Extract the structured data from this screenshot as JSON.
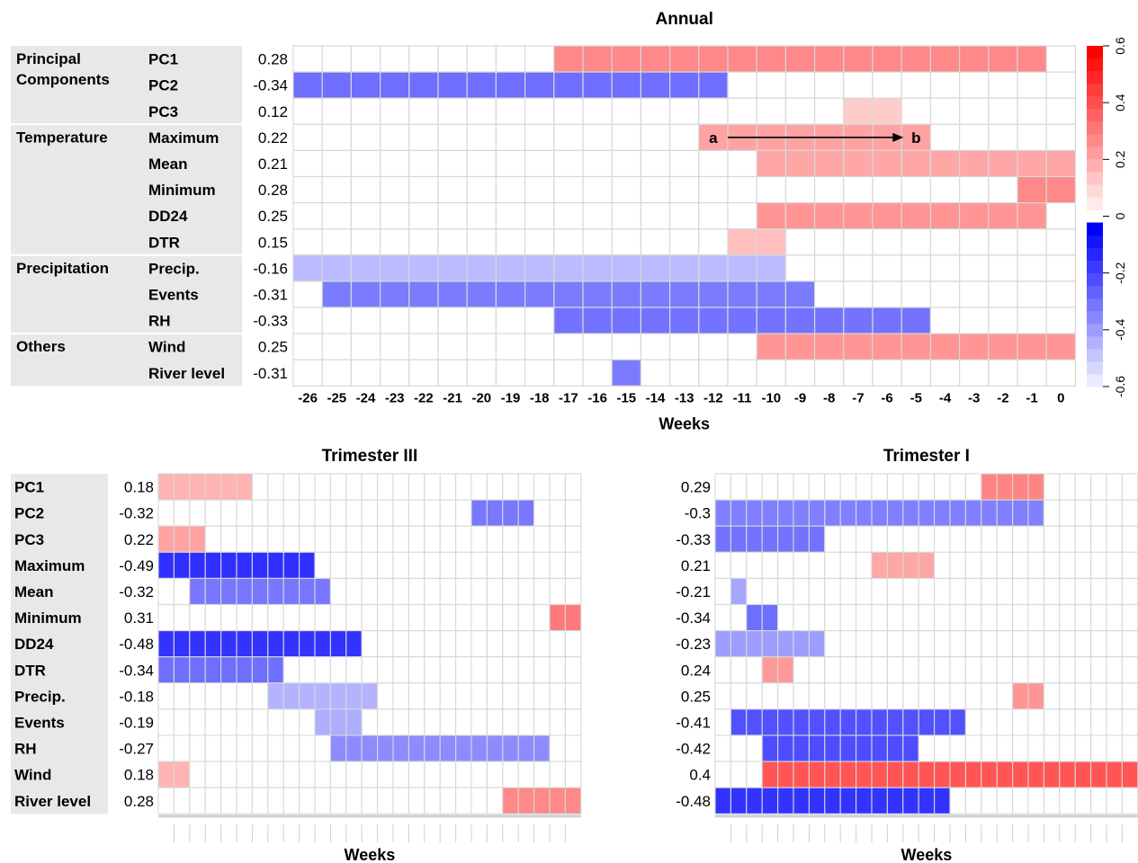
{
  "chart_data": [
    {
      "type": "heatmap",
      "title": "Annual",
      "xlabel": "Weeks",
      "x": [
        "-26",
        "-25",
        "-24",
        "-23",
        "-22",
        "-21",
        "-20",
        "-19",
        "-18",
        "-17",
        "-16",
        "-15",
        "-14",
        "-13",
        "-12",
        "-11",
        "-10",
        "-9",
        "-8",
        "-7",
        "-6",
        "-5",
        "-4",
        "-3",
        "-2",
        "-1",
        "0"
      ],
      "groups": [
        {
          "name": "Principal Components",
          "rows": [
            0,
            1,
            2
          ]
        },
        {
          "name": "Temperature",
          "rows": [
            3,
            4,
            5,
            6,
            7
          ]
        },
        {
          "name": "Precipitation",
          "rows": [
            8,
            9,
            10
          ]
        },
        {
          "name": "Others",
          "rows": [
            11,
            12
          ]
        }
      ],
      "rows": [
        {
          "label": "PC1",
          "value": "0.28",
          "start": -17,
          "end": -1
        },
        {
          "label": "PC2",
          "value": "-0.34",
          "start": -26,
          "end": -12
        },
        {
          "label": "PC3",
          "value": "0.12",
          "start": -7,
          "end": -6
        },
        {
          "label": "Maximum",
          "value": "0.22",
          "start": -12,
          "end": -5
        },
        {
          "label": "Mean",
          "value": "0.21",
          "start": -10,
          "end": 0
        },
        {
          "label": "Minimum",
          "value": "0.28",
          "start": -1,
          "end": 0
        },
        {
          "label": "DD24",
          "value": "0.25",
          "start": -10,
          "end": -1
        },
        {
          "label": "DTR",
          "value": "0.15",
          "start": -11,
          "end": -10
        },
        {
          "label": "Precip.",
          "value": "-0.16",
          "start": -26,
          "end": -10
        },
        {
          "label": "Events",
          "value": "-0.31",
          "start": -25,
          "end": -9
        },
        {
          "label": "RH",
          "value": "-0.33",
          "start": -17,
          "end": -5
        },
        {
          "label": "Wind",
          "value": "0.25",
          "start": -10,
          "end": 0
        },
        {
          "label": "River level",
          "value": "-0.31",
          "start": -15,
          "end": -15
        }
      ],
      "annotation": {
        "row": 3,
        "from_week": -12,
        "to_week": -5,
        "start_label": "a",
        "end_label": "b"
      },
      "colorbar": {
        "ticks": [
          "-0.6",
          "-0.4",
          "-0.2",
          "0",
          "0.2",
          "0.4",
          "0.6"
        ],
        "range": [
          -0.6,
          0.6
        ],
        "negative_color": "#0000ff",
        "positive_color": "#ff0000"
      }
    },
    {
      "type": "heatmap",
      "title": "Trimester III",
      "xlabel": "Weeks",
      "n_columns": 27,
      "rows": [
        {
          "label": "PC1",
          "value": "0.18",
          "start": 0,
          "end": 5
        },
        {
          "label": "PC2",
          "value": "-0.32",
          "start": 20,
          "end": 23
        },
        {
          "label": "PC3",
          "value": "0.22",
          "start": 0,
          "end": 2
        },
        {
          "label": "Maximum",
          "value": "-0.49",
          "start": 0,
          "end": 9
        },
        {
          "label": "Mean",
          "value": "-0.32",
          "start": 2,
          "end": 10
        },
        {
          "label": "Minimum",
          "value": "0.31",
          "start": 25,
          "end": 26
        },
        {
          "label": "DD24",
          "value": "-0.48",
          "start": 0,
          "end": 12
        },
        {
          "label": "DTR",
          "value": "-0.34",
          "start": 0,
          "end": 7
        },
        {
          "label": "Precip.",
          "value": "-0.18",
          "start": 7,
          "end": 13
        },
        {
          "label": "Events",
          "value": "-0.19",
          "start": 10,
          "end": 12
        },
        {
          "label": "RH",
          "value": "-0.27",
          "start": 11,
          "end": 24
        },
        {
          "label": "Wind",
          "value": "0.18",
          "start": 0,
          "end": 1
        },
        {
          "label": "River level",
          "value": "0.28",
          "start": 22,
          "end": 26
        }
      ]
    },
    {
      "type": "heatmap",
      "title": "Trimester I",
      "xlabel": "Weeks",
      "n_columns": 27,
      "rows": [
        {
          "label": "PC1",
          "value": "0.29",
          "start": 17,
          "end": 20
        },
        {
          "label": "PC2",
          "value": "-0.3",
          "start": 0,
          "end": 20
        },
        {
          "label": "PC3",
          "value": "-0.33",
          "start": 0,
          "end": 6
        },
        {
          "label": "Maximum",
          "value": "0.21",
          "start": 10,
          "end": 13
        },
        {
          "label": "Mean",
          "value": "-0.21",
          "start": 1,
          "end": 1
        },
        {
          "label": "Minimum",
          "value": "-0.34",
          "start": 2,
          "end": 3
        },
        {
          "label": "DD24",
          "value": "-0.23",
          "start": 0,
          "end": 6
        },
        {
          "label": "DTR",
          "value": "0.24",
          "start": 3,
          "end": 4
        },
        {
          "label": "Precip.",
          "value": "0.25",
          "start": 19,
          "end": 20
        },
        {
          "label": "Events",
          "value": "-0.41",
          "start": 1,
          "end": 15
        },
        {
          "label": "RH",
          "value": "-0.42",
          "start": 3,
          "end": 12
        },
        {
          "label": "Wind",
          "value": "0.4",
          "start": 3,
          "end": 26
        },
        {
          "label": "River level",
          "value": "-0.48",
          "start": 0,
          "end": 14
        }
      ]
    }
  ]
}
